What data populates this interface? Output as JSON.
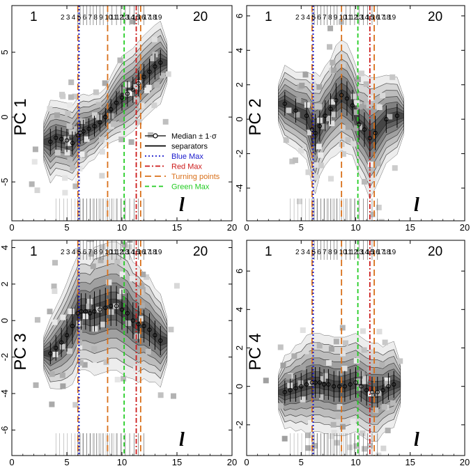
{
  "chart_data": [
    {
      "type": "scatter",
      "panel_label": "PC 1",
      "x_axis_symbol": "l",
      "corner_labels": [
        "1",
        "20"
      ],
      "separator_numbers": [
        "2",
        "3",
        "4",
        "5",
        "6",
        "7",
        "8",
        "9",
        "10",
        "11",
        "12",
        "13",
        "14",
        "15",
        "16",
        "17",
        "18",
        "19"
      ],
      "xlim": [
        0,
        20
      ],
      "ylim": [
        -8,
        8.6
      ],
      "xticks": [
        "0",
        "5",
        "10",
        "15",
        "20"
      ],
      "yticks": [
        -5,
        0,
        5
      ],
      "median_x": [
        3.5,
        4.0,
        4.5,
        5.0,
        5.5,
        6.0,
        6.2,
        6.5,
        7.0,
        7.5,
        8.0,
        8.5,
        9.0,
        9.5,
        10.0,
        10.5,
        11.0,
        11.5,
        12.0,
        12.5,
        13.0,
        13.5
      ],
      "median_y": [
        -1.9,
        -1.6,
        -1.7,
        -1.8,
        -2.0,
        -1.4,
        -1.2,
        -1.1,
        -0.9,
        -0.7,
        -0.4,
        0.0,
        0.6,
        1.1,
        1.5,
        1.8,
        2.1,
        2.6,
        3.1,
        3.5,
        3.9,
        4.2
      ],
      "sigma": [
        1.0,
        0.9,
        0.9,
        0.9,
        0.9,
        0.9,
        0.9,
        0.9,
        0.8,
        0.8,
        0.7,
        0.7,
        0.8,
        0.9,
        1.0,
        1.0,
        1.0,
        1.0,
        1.0,
        1.0,
        1.0,
        1.0
      ]
    },
    {
      "type": "scatter",
      "panel_label": "PC 2",
      "x_axis_symbol": "l",
      "corner_labels": [
        "1",
        "20"
      ],
      "separator_numbers": [
        "2",
        "3",
        "4",
        "5",
        "6",
        "7",
        "8",
        "9",
        "10",
        "11",
        "12",
        "13",
        "14",
        "15",
        "16",
        "17",
        "18",
        "19"
      ],
      "xlim": [
        0,
        20
      ],
      "ylim": [
        -5.9,
        6.6
      ],
      "xticks": [
        "0",
        "5",
        "10",
        "15",
        "20"
      ],
      "yticks": [
        -4,
        -2,
        0,
        2,
        4,
        6
      ],
      "median_x": [
        3.5,
        4.5,
        5.5,
        6.0,
        6.3,
        6.7,
        7.2,
        7.7,
        8.2,
        8.7,
        9.2,
        9.7,
        10.3,
        10.8,
        11.3,
        11.8,
        12.8,
        13.8
      ],
      "median_y": [
        0.9,
        0.5,
        0.2,
        -0.6,
        -0.8,
        -0.4,
        0.2,
        0.6,
        1.1,
        1.4,
        1.2,
        0.8,
        -0.3,
        -0.6,
        -1.1,
        -0.8,
        0.0,
        0.2
      ],
      "sigma": [
        0.7,
        0.7,
        0.8,
        1.0,
        1.1,
        0.9,
        0.9,
        0.9,
        1.0,
        1.0,
        1.0,
        0.9,
        0.9,
        1.0,
        1.1,
        1.0,
        0.8,
        0.7
      ]
    },
    {
      "type": "scatter",
      "panel_label": "PC 3",
      "x_axis_symbol": "l",
      "corner_labels": [
        "1",
        "20"
      ],
      "separator_numbers": [
        "2",
        "3",
        "4",
        "5",
        "6",
        "7",
        "8",
        "9",
        "10",
        "11",
        "12",
        "13",
        "14",
        "15",
        "16",
        "17",
        "18",
        "19"
      ],
      "xlim": [
        0,
        20
      ],
      "ylim": [
        -7.4,
        4.4
      ],
      "xticks": [
        "0",
        "5",
        "10",
        "15",
        "20"
      ],
      "yticks": [
        -6,
        -4,
        -2,
        0,
        2,
        4
      ],
      "median_x": [
        3.5,
        4.0,
        4.5,
        5.0,
        5.5,
        6.0,
        6.3,
        6.7,
        7.1,
        7.5,
        8.0,
        8.5,
        9.0,
        9.5,
        10.0,
        10.5,
        11.0,
        11.5,
        12.0,
        12.5,
        13.0,
        13.5
      ],
      "median_y": [
        -1.8,
        -1.5,
        -1.2,
        -0.8,
        -0.3,
        0.4,
        0.5,
        0.5,
        0.4,
        0.5,
        0.6,
        0.7,
        0.8,
        0.8,
        0.6,
        0.4,
        0.0,
        -0.2,
        -0.3,
        -0.5,
        -0.8,
        -1.1
      ],
      "sigma": [
        0.6,
        0.7,
        0.8,
        0.9,
        1.0,
        1.0,
        1.0,
        1.0,
        1.0,
        1.1,
        1.1,
        1.1,
        1.1,
        1.1,
        1.1,
        1.1,
        1.0,
        1.0,
        0.9,
        0.9,
        0.8,
        0.8
      ]
    },
    {
      "type": "scatter",
      "panel_label": "PC 4",
      "x_axis_symbol": "l",
      "corner_labels": [
        "1",
        "20"
      ],
      "separator_numbers": [
        "2",
        "3",
        "4",
        "5",
        "6",
        "7",
        "8",
        "9",
        "10",
        "11",
        "12",
        "13",
        "14",
        "15",
        "16",
        "17",
        "18",
        "19"
      ],
      "xlim": [
        0,
        20
      ],
      "ylim": [
        -3.6,
        7.6
      ],
      "xticks": [
        "0",
        "5",
        "10",
        "15",
        "20"
      ],
      "yticks": [
        -2,
        0,
        2,
        4,
        6
      ],
      "median_x": [
        3.5,
        4.0,
        4.5,
        5.0,
        5.5,
        6.0,
        6.3,
        6.7,
        7.1,
        7.5,
        8.0,
        8.5,
        9.0,
        9.5,
        10.0,
        10.5,
        11.0,
        11.5,
        12.0,
        12.5,
        13.0,
        13.5
      ],
      "median_y": [
        -0.3,
        -0.2,
        -0.1,
        0.0,
        0.1,
        0.2,
        0.2,
        0.2,
        0.1,
        0.1,
        0.0,
        0.0,
        0.0,
        0.1,
        0.2,
        0.0,
        -0.2,
        -0.3,
        -0.3,
        -0.2,
        0.0,
        0.1
      ],
      "sigma": [
        0.6,
        0.6,
        0.7,
        0.7,
        0.8,
        0.8,
        0.8,
        0.8,
        0.8,
        0.8,
        0.8,
        0.8,
        0.8,
        0.8,
        0.8,
        0.8,
        0.8,
        0.8,
        0.8,
        0.7,
        0.7,
        0.7
      ]
    }
  ],
  "vlines": {
    "blue_max": 6.1,
    "red_max": 11.3,
    "turning_points": [
      6.0,
      8.7,
      11.7
    ],
    "green_max": 10.2
  },
  "separator_positions": [
    6.0,
    6.2,
    6.5,
    6.8,
    7.1,
    7.4,
    7.7,
    8.0,
    8.3,
    8.7,
    9.1,
    9.5,
    9.9,
    10.3,
    10.7,
    11.1,
    11.5,
    12.0
  ],
  "legend": {
    "entries": [
      {
        "label": "Median ± 1·σ",
        "color": "#000000",
        "style": "median"
      },
      {
        "label": "separators",
        "color": "#000000",
        "style": "solid"
      },
      {
        "label": "Blue Max",
        "color": "#1a1acc",
        "style": "dotted"
      },
      {
        "label": "Red Max",
        "color": "#cc1a1a",
        "style": "dashdot"
      },
      {
        "label": "Turning points",
        "color": "#d9701a",
        "style": "longdash"
      },
      {
        "label": "Green Max",
        "color": "#22cc22",
        "style": "dashed"
      }
    ]
  },
  "colors": {
    "blue_max": "#1a1acc",
    "red_max": "#cc1a1a",
    "turning_points": "#d9701a",
    "green_max": "#22cc22"
  }
}
